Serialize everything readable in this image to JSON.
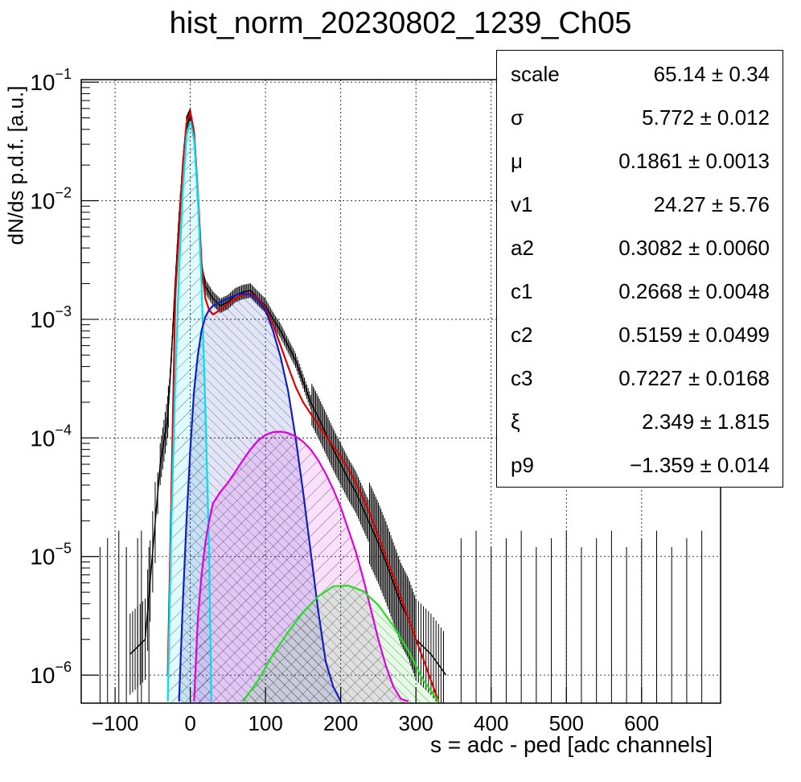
{
  "chart_data": {
    "type": "histogram",
    "title": "hist_norm_20230802_1239_Ch05",
    "xlabel": "s = adc - ped [adc channels]",
    "ylabel": "dN/ds p.d.f. [a.u.]",
    "xlim": [
      -145,
      705
    ],
    "ylim": [
      5.8e-07,
      0.105
    ],
    "ylog": true,
    "grid": true,
    "x_ticks": [
      -100,
      0,
      100,
      200,
      300,
      400,
      500,
      600
    ],
    "y_ticks": [
      1e-06,
      1e-05,
      0.0001,
      0.001,
      0.01,
      0.1
    ],
    "y_tick_labels": [
      "10^-6",
      "10^-5",
      "10^-4",
      "10^-3",
      "10^-2",
      "10^-1"
    ],
    "histogram": {
      "name": "data",
      "color": "#000000",
      "x": [
        -80,
        -60,
        -40,
        -30,
        -25,
        -20,
        -15,
        -10,
        -5,
        0,
        5,
        10,
        15,
        20,
        30,
        40,
        50,
        60,
        70,
        80,
        90,
        100,
        110,
        120,
        130,
        140,
        150,
        160,
        170,
        180,
        190,
        200,
        210,
        220,
        230,
        240,
        250,
        260,
        270,
        280,
        290,
        300,
        320,
        340
      ],
      "y": [
        1.5e-06,
        2e-06,
        6e-05,
        0.00015,
        0.0005,
        0.002,
        0.007,
        0.02,
        0.045,
        0.053,
        0.035,
        0.01,
        0.0025,
        0.0019,
        0.0015,
        0.0013,
        0.0014,
        0.0016,
        0.0017,
        0.00175,
        0.0015,
        0.0013,
        0.001,
        0.0008,
        0.0006,
        0.00045,
        0.0003,
        0.0002,
        0.00015,
        0.00011,
        8e-05,
        6e-05,
        4.5e-05,
        3.5e-05,
        2.5e-05,
        1.8e-05,
        1.3e-05,
        9e-06,
        6e-06,
        4e-06,
        3e-06,
        2e-06,
        1.5e-06,
        1e-06
      ]
    },
    "series": [
      {
        "color": "#e00000",
        "x": [
          -30,
          -20,
          -10,
          -5,
          0,
          5,
          10,
          15,
          20,
          25,
          30,
          40,
          50,
          60,
          70,
          80,
          90,
          100,
          110,
          120,
          130,
          140,
          150,
          160,
          170,
          180,
          190,
          200,
          210,
          220,
          230,
          240,
          250,
          260,
          270,
          280,
          290,
          300,
          310,
          320,
          330
        ],
        "y": [
          1e-06,
          0.0015,
          0.02,
          0.045,
          0.056,
          0.038,
          0.012,
          0.003,
          0.0015,
          0.0012,
          0.0011,
          0.0012,
          0.00135,
          0.0015,
          0.0016,
          0.00165,
          0.0015,
          0.00125,
          0.0009,
          0.0006,
          0.0004,
          0.00027,
          0.0002,
          0.00016,
          0.00013,
          0.000105,
          8.5e-05,
          7e-05,
          5.5e-05,
          4.2e-05,
          3.1e-05,
          2.2e-05,
          1.5e-05,
          1e-05,
          6.8e-06,
          4.5e-06,
          3e-06,
          2e-06,
          1.35e-06,
          9e-07,
          6e-07
        ]
      },
      {
        "color": "#00e0f0",
        "fill_hatch": true,
        "x": [
          -30,
          -25,
          -20,
          -15,
          -10,
          -5,
          0,
          5,
          10,
          15,
          20,
          25,
          28
        ],
        "y": [
          6e-07,
          2e-05,
          0.0003,
          0.0025,
          0.012,
          0.035,
          0.047,
          0.033,
          0.011,
          0.002,
          0.00018,
          1.1e-05,
          6e-07
        ]
      },
      {
        "color": "#1020c0",
        "fill_hatch": true,
        "x": [
          -15,
          -10,
          -5,
          0,
          5,
          10,
          15,
          20,
          25,
          30,
          40,
          50,
          60,
          70,
          80,
          90,
          100,
          110,
          120,
          130,
          140,
          150,
          160,
          170,
          180,
          190,
          200
        ],
        "y": [
          6e-07,
          4e-06,
          2e-05,
          8e-05,
          0.00025,
          0.0005,
          0.0008,
          0.00105,
          0.0012,
          0.0013,
          0.0014,
          0.0015,
          0.0016,
          0.00165,
          0.00162,
          0.00145,
          0.0012,
          0.0008,
          0.00048,
          0.00025,
          0.0001,
          3.5e-05,
          1.1e-05,
          3.5e-06,
          1.3e-06,
          8e-07,
          6e-07
        ]
      },
      {
        "color": "#e000e0",
        "fill_hatch": true,
        "x": [
          5,
          10,
          15,
          20,
          25,
          30,
          40,
          50,
          60,
          70,
          80,
          90,
          100,
          110,
          120,
          130,
          140,
          150,
          160,
          170,
          180,
          190,
          200,
          210,
          220,
          230,
          240,
          250,
          260,
          270,
          280,
          290
        ],
        "y": [
          6e-07,
          3e-06,
          7e-06,
          1.3e-05,
          2e-05,
          2.8e-05,
          3.5e-05,
          4.2e-05,
          5.2e-05,
          6.5e-05,
          8e-05,
          9.5e-05,
          0.000106,
          0.000112,
          0.000113,
          0.00011,
          0.000103,
          9.3e-05,
          8e-05,
          6.5e-05,
          5e-05,
          3.7e-05,
          2.6e-05,
          1.7e-05,
          1.1e-05,
          6.5e-06,
          3.6e-06,
          2e-06,
          1.2e-06,
          8e-07,
          6.3e-07,
          6e-07
        ]
      },
      {
        "color": "#20e020",
        "fill_hatch": true,
        "x": [
          70,
          90,
          110,
          130,
          150,
          170,
          190,
          210,
          230,
          250,
          270,
          290,
          310,
          330
        ],
        "y": [
          6e-07,
          9e-07,
          1.5e-06,
          2.3e-06,
          3.4e-06,
          4.6e-06,
          5.6e-06,
          5.7e-06,
          5.1e-06,
          3.9e-06,
          2.6e-06,
          1.6e-06,
          9e-07,
          6e-07
        ]
      }
    ]
  },
  "stats": [
    {
      "name": "scale",
      "value": "65.14 ± 0.34"
    },
    {
      "name": "σ",
      "value": "5.772 ± 0.012"
    },
    {
      "name": "μ",
      "value": "0.1861 ± 0.0013"
    },
    {
      "name": "v1",
      "value": "24.27 ± 5.76"
    },
    {
      "name": "a2",
      "value": "0.3082 ± 0.0060"
    },
    {
      "name": "c1",
      "value": "0.2668 ± 0.0048"
    },
    {
      "name": "c2",
      "value": "0.5159 ± 0.0499"
    },
    {
      "name": "c3",
      "value": "0.7227 ± 0.0168"
    },
    {
      "name": "ξ",
      "value": "2.349 ± 1.815"
    },
    {
      "name": "p9",
      "value": "−1.359 ± 0.014"
    }
  ]
}
